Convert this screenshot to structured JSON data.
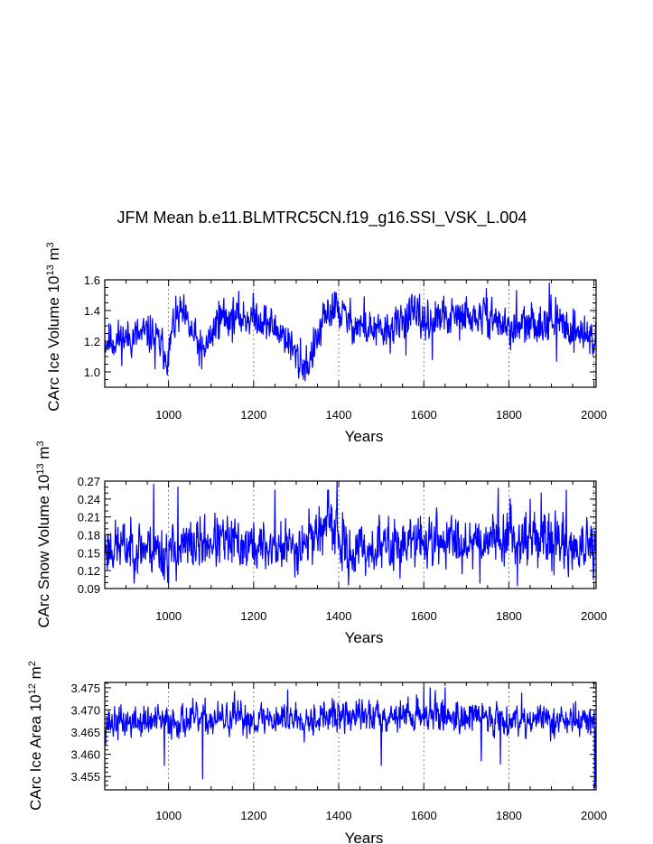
{
  "title": "JFM Mean b.e11.BLMTRC5CN.f19_g16.SSI_VSK_L.004",
  "chart_data": [
    {
      "type": "line",
      "title": "JFM Mean b.e11.BLMTRC5CN.f19_g16.SSI_VSK_L.004",
      "xlabel": "Years",
      "ylabel": "CArc Ice Volume 10",
      "ylabel_exponent": "13",
      "ylabel_unit": "m",
      "ylabel_unit_exponent": "3",
      "xlim": [
        850,
        2005
      ],
      "ylim": [
        0.9,
        1.6
      ],
      "x_ticks": [
        "1000",
        "1200",
        "1400",
        "1600",
        "1800",
        "2000"
      ],
      "y_ticks": [
        "1.0",
        "1.2",
        "1.4",
        "1.6"
      ],
      "y_tick_values": [
        1.0,
        1.2,
        1.4,
        1.6
      ],
      "series": [
        {
          "name": "CArc Ice Volume",
          "color": "#0000ff",
          "mean": 1.27,
          "amplitude": 0.075,
          "seed": 11,
          "shape": [
            [
              850,
              1.2
            ],
            [
              900,
              1.22
            ],
            [
              960,
              1.25
            ],
            [
              1000,
              1.1
            ],
            [
              1010,
              1.3
            ],
            [
              1030,
              1.38
            ],
            [
              1080,
              1.12
            ],
            [
              1120,
              1.35
            ],
            [
              1210,
              1.36
            ],
            [
              1240,
              1.3
            ],
            [
              1270,
              1.25
            ],
            [
              1310,
              1.05
            ],
            [
              1330,
              1.06
            ],
            [
              1370,
              1.36
            ],
            [
              1390,
              1.42
            ],
            [
              1430,
              1.32
            ],
            [
              1500,
              1.25
            ],
            [
              1540,
              1.3
            ],
            [
              1560,
              1.38
            ],
            [
              1600,
              1.33
            ],
            [
              1650,
              1.35
            ],
            [
              1720,
              1.35
            ],
            [
              1760,
              1.36
            ],
            [
              1800,
              1.28
            ],
            [
              1850,
              1.3
            ],
            [
              1895,
              1.35
            ],
            [
              1950,
              1.28
            ],
            [
              2005,
              1.22
            ]
          ],
          "extremes": [
            [
              968,
              1.02
            ],
            [
              1000,
              1.04
            ],
            [
              1078,
              1.02
            ],
            [
              1118,
              1.46
            ],
            [
              1130,
              1.48
            ],
            [
              1305,
              1.0
            ],
            [
              1310,
              1.22
            ],
            [
              1330,
              0.99
            ],
            [
              1385,
              1.51
            ],
            [
              1395,
              1.48
            ],
            [
              1460,
              1.49
            ],
            [
              1558,
              1.11
            ],
            [
              1620,
              1.08
            ],
            [
              1700,
              1.49
            ],
            [
              1740,
              1.47
            ],
            [
              1818,
              1.53
            ],
            [
              1895,
              1.58
            ],
            [
              1912,
              1.07
            ],
            [
              1990,
              1.12
            ]
          ]
        }
      ]
    },
    {
      "type": "line",
      "xlabel": "Years",
      "ylabel": "CArc Snow Volume 10",
      "ylabel_exponent": "13",
      "ylabel_unit": "m",
      "ylabel_unit_exponent": "3",
      "xlim": [
        850,
        2005
      ],
      "ylim": [
        0.09,
        0.27
      ],
      "x_ticks": [
        "1000",
        "1200",
        "1400",
        "1600",
        "1800",
        "2000"
      ],
      "y_ticks": [
        "0.09",
        "0.12",
        "0.15",
        "0.18",
        "0.21",
        "0.24",
        "0.27"
      ],
      "y_tick_values": [
        0.09,
        0.12,
        0.15,
        0.18,
        0.21,
        0.24,
        0.27
      ],
      "series": [
        {
          "name": "CArc Snow Volume",
          "color": "#0000ff",
          "mean": 0.165,
          "amplitude": 0.026,
          "seed": 23,
          "shape": [
            [
              850,
              0.16
            ],
            [
              950,
              0.16
            ],
            [
              1000,
              0.15
            ],
            [
              1100,
              0.17
            ],
            [
              1200,
              0.16
            ],
            [
              1300,
              0.16
            ],
            [
              1380,
              0.2
            ],
            [
              1420,
              0.15
            ],
            [
              1500,
              0.16
            ],
            [
              1600,
              0.17
            ],
            [
              1700,
              0.17
            ],
            [
              1800,
              0.18
            ],
            [
              1900,
              0.17
            ],
            [
              2005,
              0.15
            ]
          ],
          "extremes": [
            [
              965,
              0.265
            ],
            [
              990,
              0.105
            ],
            [
              1000,
              0.1
            ],
            [
              1022,
              0.26
            ],
            [
              1250,
              0.255
            ],
            [
              1396,
              0.27
            ],
            [
              1408,
              0.12
            ],
            [
              1732,
              0.099
            ],
            [
              1775,
              0.258
            ],
            [
              1820,
              0.095
            ],
            [
              1850,
              0.24
            ],
            [
              1876,
              0.25
            ],
            [
              1935,
              0.255
            ],
            [
              1940,
              0.11
            ],
            [
              2000,
              0.12
            ]
          ]
        }
      ]
    },
    {
      "type": "line",
      "xlabel": "Years",
      "ylabel": "CArc Ice Area 10",
      "ylabel_exponent": "12",
      "ylabel_unit": "m",
      "ylabel_unit_exponent": "2",
      "xlim": [
        850,
        2005
      ],
      "ylim": [
        3.452,
        3.4762
      ],
      "x_ticks": [
        "1000",
        "1200",
        "1400",
        "1600",
        "1800",
        "2000"
      ],
      "y_ticks": [
        "3.455",
        "3.460",
        "3.465",
        "3.470",
        "3.475"
      ],
      "y_tick_values": [
        3.455,
        3.46,
        3.465,
        3.47,
        3.475
      ],
      "series": [
        {
          "name": "CArc Ice Area",
          "color": "#0000ff",
          "mean": 3.468,
          "amplitude": 0.0022,
          "seed": 37,
          "shape": [
            [
              850,
              3.467
            ],
            [
              1000,
              3.4675
            ],
            [
              1200,
              3.468
            ],
            [
              1400,
              3.4685
            ],
            [
              1600,
              3.469
            ],
            [
              1800,
              3.468
            ],
            [
              2005,
              3.4675
            ]
          ],
          "extremes": [
            [
              852,
              3.462
            ],
            [
              990,
              3.4575
            ],
            [
              1080,
              3.4545
            ],
            [
              1155,
              3.4742
            ],
            [
              1280,
              3.4745
            ],
            [
              1500,
              3.4575
            ],
            [
              1600,
              3.475
            ],
            [
              1615,
              3.475
            ],
            [
              1650,
              3.475
            ],
            [
              1735,
              3.4585
            ],
            [
              1780,
              3.4578
            ],
            [
              1830,
              3.4738
            ],
            [
              2002,
              3.4525
            ],
            [
              2004,
              3.454
            ]
          ]
        }
      ]
    }
  ]
}
